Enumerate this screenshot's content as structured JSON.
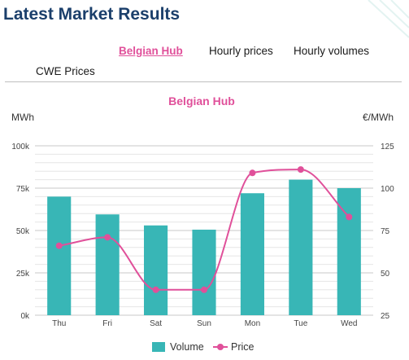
{
  "page": {
    "title": "Latest Market Results"
  },
  "tabs": [
    {
      "label": "Belgian Hub",
      "active": true
    },
    {
      "label": "Hourly prices",
      "active": false
    },
    {
      "label": "Hourly volumes",
      "active": false
    },
    {
      "label": "CWE Prices",
      "active": false
    }
  ],
  "colors": {
    "volume": "#38b6b6",
    "price": "#e0509a",
    "title": "#1b3f6b"
  },
  "chart_data": {
    "type": "bar",
    "title": "Belgian Hub",
    "categories": [
      "Thu",
      "Fri",
      "Sat",
      "Sun",
      "Mon",
      "Tue",
      "Wed"
    ],
    "left_axis": {
      "label": "MWh",
      "range": [
        0,
        100000
      ],
      "ticks": [
        {
          "value": 0,
          "label": "0k"
        },
        {
          "value": 25000,
          "label": "25k"
        },
        {
          "value": 50000,
          "label": "50k"
        },
        {
          "value": 75000,
          "label": "75k"
        },
        {
          "value": 100000,
          "label": "100k"
        }
      ]
    },
    "right_axis": {
      "label": "€/MWh",
      "range": [
        25,
        125
      ],
      "ticks": [
        25,
        50,
        75,
        100,
        125
      ]
    },
    "series": [
      {
        "name": "Volume",
        "type": "bar",
        "axis": "left",
        "values": [
          70000,
          59500,
          53000,
          50500,
          72000,
          80000,
          75000
        ]
      },
      {
        "name": "Price",
        "type": "line",
        "smooth": true,
        "axis": "right",
        "values": [
          66,
          71,
          40,
          40,
          109,
          111,
          83
        ]
      }
    ],
    "grid": true,
    "legend": "bottom-center"
  }
}
